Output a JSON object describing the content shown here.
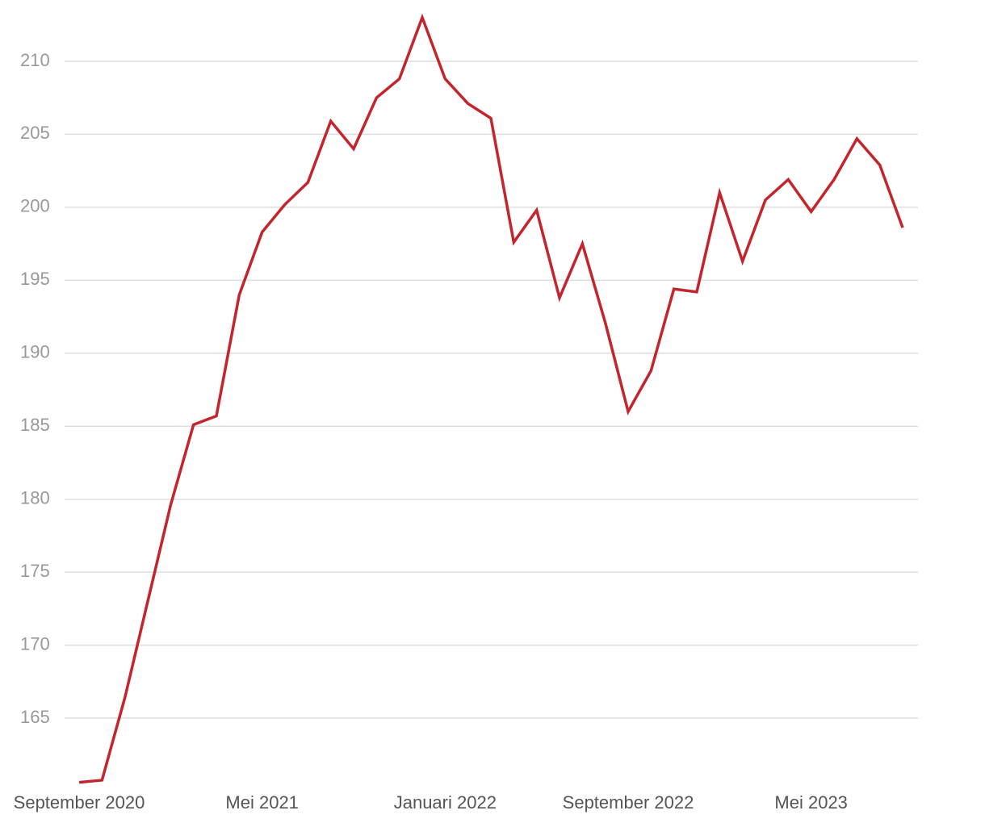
{
  "chart_data": {
    "type": "line",
    "categories": [
      "September 2020",
      null,
      null,
      null,
      null,
      null,
      null,
      null,
      "Mei 2021",
      null,
      null,
      null,
      null,
      null,
      null,
      null,
      "Januari 2022",
      null,
      null,
      null,
      null,
      null,
      null,
      null,
      "September 2022",
      null,
      null,
      null,
      null,
      null,
      null,
      null,
      "Mei 2023",
      null,
      null,
      null,
      null
    ],
    "values": [
      160.6,
      160.75,
      166.4,
      173.0,
      179.6,
      185.1,
      185.7,
      194.0,
      198.3,
      200.2,
      201.7,
      205.9,
      204.0,
      207.5,
      208.8,
      213.0,
      208.8,
      207.1,
      206.1,
      197.6,
      199.8,
      193.8,
      197.5,
      192.1,
      186.0,
      188.8,
      194.4,
      194.2,
      201.0,
      196.3,
      200.5,
      201.9,
      199.7,
      201.9,
      204.7,
      202.9,
      198.6
    ],
    "color": "#c4242b",
    "ylim": [
      160,
      213
    ],
    "yticks": [
      165,
      170,
      175,
      180,
      185,
      190,
      195,
      200,
      205,
      210
    ],
    "grid": true
  }
}
